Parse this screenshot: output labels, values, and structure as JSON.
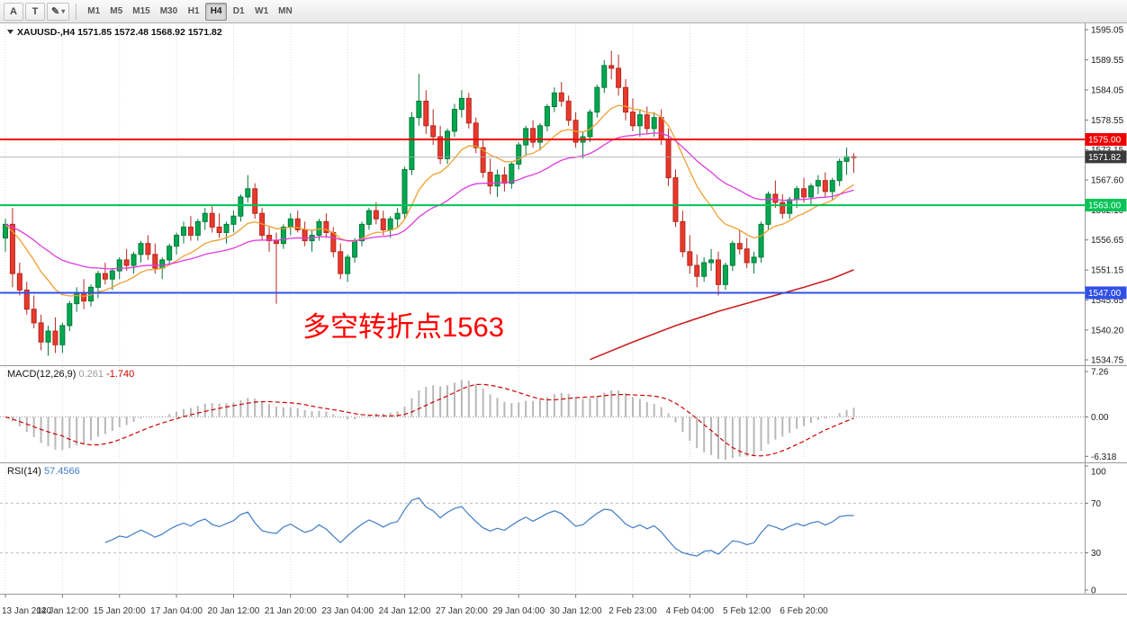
{
  "toolbar": {
    "arrow_tool_label": "A",
    "text_tool_label": "T",
    "draw_tool_icon": "✎",
    "caret_icon": "▾",
    "timeframes": [
      "M1",
      "M5",
      "M15",
      "M30",
      "H1",
      "H4",
      "D1",
      "W1",
      "MN"
    ],
    "active_timeframe": "H4"
  },
  "chart": {
    "header": {
      "symbol": "XAUUSD-,H4",
      "open": "1571.85",
      "high": "1572.48",
      "low": "1568.92",
      "close": "1571.82"
    },
    "annotation": {
      "text": "多空转折点1563",
      "color": "#ff0000"
    },
    "hlines": [
      {
        "price": 1575.0,
        "label": "1575.00",
        "color": "#ee0000",
        "text_color": "#ffffff"
      },
      {
        "price": 1563.0,
        "label": "1563.00",
        "color": "#00c455",
        "text_color": "#ffffff"
      },
      {
        "price": 1547.0,
        "label": "1547.00",
        "color": "#3050e8",
        "text_color": "#ffffff"
      }
    ],
    "bid": {
      "price": 1571.82,
      "label": "1571.82"
    },
    "price_ticks": [
      "1595.05",
      "1589.55",
      "1584.05",
      "1578.55",
      "1573.15",
      "1567.60",
      "1562.10",
      "1556.65",
      "1551.15",
      "1545.65",
      "1540.20",
      "1534.75"
    ]
  },
  "chart_data": {
    "type": "candlestick",
    "symbol": "XAUUSD",
    "timeframe": "H4",
    "title": "XAUUSD-,H4 1571.85 1572.48 1568.92 1571.82",
    "price_range": [
      1534.75,
      1595.05
    ],
    "label_every_n_bars": 8,
    "time_labels": [
      "13 Jan 2020",
      "14 Jan 12:00",
      "15 Jan 20:00",
      "17 Jan 04:00",
      "20 Jan 12:00",
      "21 Jan 20:00",
      "23 Jan 04:00",
      "24 Jan 12:00",
      "27 Jan 20:00",
      "29 Jan 04:00",
      "30 Jan 12:00",
      "2 Feb 23:00",
      "4 Feb 04:00",
      "5 Feb 12:00",
      "6 Feb 20:00"
    ],
    "candles": [
      [
        1557.0,
        1560.5,
        1554.5,
        1559.5
      ],
      [
        1559.5,
        1562.5,
        1548.0,
        1550.5
      ],
      [
        1550.5,
        1552.5,
        1546.5,
        1547.5
      ],
      [
        1547.5,
        1549.0,
        1543.0,
        1544.0
      ],
      [
        1544.0,
        1546.5,
        1540.5,
        1541.5
      ],
      [
        1541.5,
        1543.0,
        1536.5,
        1538.0
      ],
      [
        1538.0,
        1541.0,
        1535.5,
        1540.0
      ],
      [
        1540.0,
        1542.5,
        1536.0,
        1537.5
      ],
      [
        1537.5,
        1541.5,
        1536.0,
        1541.0
      ],
      [
        1541.0,
        1545.5,
        1540.0,
        1545.0
      ],
      [
        1545.0,
        1548.0,
        1543.5,
        1547.0
      ],
      [
        1547.0,
        1549.5,
        1544.0,
        1545.5
      ],
      [
        1545.5,
        1548.5,
        1544.5,
        1548.0
      ],
      [
        1548.0,
        1551.0,
        1546.0,
        1550.5
      ],
      [
        1550.5,
        1552.5,
        1548.5,
        1549.5
      ],
      [
        1549.5,
        1551.5,
        1547.5,
        1551.0
      ],
      [
        1551.0,
        1553.5,
        1549.5,
        1553.0
      ],
      [
        1553.0,
        1555.0,
        1551.0,
        1552.0
      ],
      [
        1552.0,
        1554.5,
        1550.5,
        1554.0
      ],
      [
        1554.0,
        1556.5,
        1552.5,
        1556.0
      ],
      [
        1556.0,
        1557.5,
        1553.0,
        1554.0
      ],
      [
        1554.0,
        1556.0,
        1550.5,
        1551.5
      ],
      [
        1551.5,
        1553.5,
        1549.5,
        1553.0
      ],
      [
        1553.0,
        1556.0,
        1552.0,
        1555.5
      ],
      [
        1555.5,
        1558.0,
        1554.0,
        1557.5
      ],
      [
        1557.5,
        1560.0,
        1556.0,
        1559.0
      ],
      [
        1559.0,
        1561.0,
        1556.5,
        1557.5
      ],
      [
        1557.5,
        1560.5,
        1556.5,
        1560.0
      ],
      [
        1560.0,
        1562.5,
        1558.5,
        1561.5
      ],
      [
        1561.5,
        1562.8,
        1558.0,
        1559.0
      ],
      [
        1559.0,
        1561.5,
        1557.0,
        1558.0
      ],
      [
        1558.0,
        1560.0,
        1556.0,
        1559.5
      ],
      [
        1559.5,
        1562.0,
        1558.0,
        1561.0
      ],
      [
        1561.0,
        1565.0,
        1560.0,
        1564.5
      ],
      [
        1564.5,
        1568.5,
        1563.5,
        1566.0
      ],
      [
        1566.0,
        1567.0,
        1560.5,
        1561.5
      ],
      [
        1561.5,
        1562.5,
        1556.5,
        1557.5
      ],
      [
        1557.5,
        1559.0,
        1554.5,
        1556.5
      ],
      [
        1556.5,
        1558.0,
        1545.0,
        1556.0
      ],
      [
        1556.0,
        1559.5,
        1555.0,
        1559.0
      ],
      [
        1559.0,
        1561.5,
        1557.5,
        1560.5
      ],
      [
        1560.5,
        1562.0,
        1558.0,
        1558.5
      ],
      [
        1558.5,
        1560.0,
        1555.5,
        1556.5
      ],
      [
        1556.5,
        1558.5,
        1554.5,
        1557.5
      ],
      [
        1557.5,
        1560.5,
        1556.5,
        1560.0
      ],
      [
        1560.0,
        1561.5,
        1557.0,
        1558.0
      ],
      [
        1558.0,
        1559.0,
        1553.5,
        1554.5
      ],
      [
        1554.5,
        1556.0,
        1549.5,
        1550.5
      ],
      [
        1550.5,
        1554.0,
        1549.0,
        1553.5
      ],
      [
        1553.5,
        1557.0,
        1552.5,
        1556.5
      ],
      [
        1556.5,
        1560.0,
        1555.5,
        1559.5
      ],
      [
        1559.5,
        1562.5,
        1558.5,
        1562.0
      ],
      [
        1562.0,
        1563.5,
        1559.5,
        1560.5
      ],
      [
        1560.5,
        1562.0,
        1557.5,
        1558.5
      ],
      [
        1558.5,
        1561.0,
        1557.0,
        1560.5
      ],
      [
        1560.5,
        1562.5,
        1559.0,
        1561.5
      ],
      [
        1561.5,
        1570.0,
        1560.5,
        1569.5
      ],
      [
        1569.5,
        1580.0,
        1568.5,
        1579.0
      ],
      [
        1579.0,
        1587.0,
        1577.5,
        1582.0
      ],
      [
        1582.0,
        1584.0,
        1576.0,
        1577.5
      ],
      [
        1577.5,
        1580.5,
        1574.0,
        1575.5
      ],
      [
        1575.5,
        1577.5,
        1570.5,
        1571.5
      ],
      [
        1571.5,
        1577.0,
        1570.5,
        1576.5
      ],
      [
        1576.5,
        1581.5,
        1575.5,
        1580.5
      ],
      [
        1580.5,
        1584.0,
        1579.0,
        1582.5
      ],
      [
        1582.5,
        1583.5,
        1577.0,
        1578.0
      ],
      [
        1578.0,
        1579.0,
        1572.5,
        1573.5
      ],
      [
        1573.5,
        1575.0,
        1568.0,
        1569.0
      ],
      [
        1569.0,
        1571.5,
        1565.0,
        1566.5
      ],
      [
        1566.5,
        1569.5,
        1564.5,
        1568.5
      ],
      [
        1568.5,
        1570.0,
        1565.5,
        1567.0
      ],
      [
        1567.0,
        1571.0,
        1566.0,
        1570.5
      ],
      [
        1570.5,
        1574.5,
        1569.5,
        1574.0
      ],
      [
        1574.0,
        1577.5,
        1572.0,
        1577.0
      ],
      [
        1577.0,
        1578.5,
        1573.5,
        1574.5
      ],
      [
        1574.5,
        1578.0,
        1573.0,
        1577.5
      ],
      [
        1577.5,
        1581.5,
        1576.5,
        1581.0
      ],
      [
        1581.0,
        1584.5,
        1580.0,
        1583.5
      ],
      [
        1583.5,
        1585.5,
        1581.0,
        1582.0
      ],
      [
        1582.0,
        1583.0,
        1577.5,
        1578.5
      ],
      [
        1578.5,
        1580.0,
        1573.5,
        1574.5
      ],
      [
        1574.5,
        1576.5,
        1571.5,
        1575.5
      ],
      [
        1575.5,
        1580.5,
        1574.5,
        1580.0
      ],
      [
        1580.0,
        1585.0,
        1579.0,
        1584.5
      ],
      [
        1584.5,
        1589.5,
        1583.5,
        1588.5
      ],
      [
        1588.5,
        1591.2,
        1586.0,
        1588.0
      ],
      [
        1588.0,
        1590.5,
        1583.0,
        1584.5
      ],
      [
        1584.5,
        1586.0,
        1578.5,
        1580.0
      ],
      [
        1580.0,
        1582.5,
        1576.5,
        1577.5
      ],
      [
        1577.5,
        1580.5,
        1575.5,
        1579.5
      ],
      [
        1579.5,
        1581.0,
        1576.0,
        1577.0
      ],
      [
        1577.0,
        1580.0,
        1575.5,
        1579.0
      ],
      [
        1579.0,
        1580.5,
        1574.0,
        1575.0
      ],
      [
        1575.0,
        1577.0,
        1566.5,
        1568.0
      ],
      [
        1568.0,
        1569.5,
        1559.0,
        1560.0
      ],
      [
        1560.0,
        1562.0,
        1553.5,
        1554.5
      ],
      [
        1554.5,
        1557.5,
        1550.5,
        1552.0
      ],
      [
        1552.0,
        1554.0,
        1548.0,
        1550.0
      ],
      [
        1550.0,
        1553.5,
        1549.0,
        1552.5
      ],
      [
        1552.5,
        1555.0,
        1551.0,
        1553.0
      ],
      [
        1553.0,
        1554.5,
        1546.5,
        1548.5
      ],
      [
        1548.5,
        1552.5,
        1547.5,
        1552.0
      ],
      [
        1552.0,
        1556.5,
        1551.0,
        1556.0
      ],
      [
        1556.0,
        1558.5,
        1554.0,
        1555.0
      ],
      [
        1555.0,
        1557.0,
        1551.5,
        1552.5
      ],
      [
        1552.5,
        1554.5,
        1550.5,
        1553.5
      ],
      [
        1553.5,
        1560.0,
        1552.5,
        1559.5
      ],
      [
        1559.5,
        1565.5,
        1558.5,
        1565.0
      ],
      [
        1565.0,
        1567.5,
        1562.5,
        1563.5
      ],
      [
        1563.5,
        1565.0,
        1560.5,
        1561.5
      ],
      [
        1561.5,
        1564.5,
        1560.5,
        1564.0
      ],
      [
        1564.0,
        1566.5,
        1562.5,
        1566.0
      ],
      [
        1566.0,
        1568.0,
        1563.5,
        1564.5
      ],
      [
        1564.5,
        1567.0,
        1563.0,
        1566.5
      ],
      [
        1566.5,
        1568.5,
        1565.0,
        1567.5
      ],
      [
        1567.5,
        1569.0,
        1564.5,
        1565.5
      ],
      [
        1565.5,
        1568.0,
        1564.0,
        1567.5
      ],
      [
        1567.5,
        1571.5,
        1566.5,
        1571.0
      ],
      [
        1571.0,
        1573.5,
        1568.5,
        1571.85
      ],
      [
        1571.85,
        1572.48,
        1568.92,
        1571.82
      ]
    ],
    "ma_fast_period": 13,
    "ma_slow_period": 34,
    "trend_points": [
      [
        82,
        1534.8
      ],
      [
        88,
        1538.0
      ],
      [
        94,
        1541.0
      ],
      [
        100,
        1543.6
      ],
      [
        106,
        1545.8
      ],
      [
        112,
        1548.0
      ],
      [
        116,
        1549.6
      ],
      [
        119,
        1551.2
      ]
    ],
    "macd": {
      "label": "MACD(12,26,9)",
      "values_text": [
        "0.261",
        "-1.740"
      ],
      "axis_ticks": [
        "7.26",
        "0.00",
        "-6.318"
      ]
    },
    "rsi": {
      "label": "RSI(14)",
      "value_text": "57.4566",
      "levels": [
        70,
        30
      ],
      "axis_ticks": [
        "100",
        "70",
        "30",
        "0"
      ]
    }
  },
  "colors": {
    "up": "#00a94f",
    "up_border": "#00793a",
    "down": "#e8392c",
    "down_border": "#b5281e",
    "ma_fast": "#f0a030",
    "ma_slow": "#df3bdf",
    "trend": "#cc1f1f",
    "macd_hist": "#b8b8b8",
    "macd_signal": "#cc0000",
    "rsi": "#3f7cc4",
    "grid": "#dadada",
    "panel_border": "#9a9a9a",
    "axis_text": "#1a1a1a",
    "bid_line": "#a8a8a8",
    "bid_badge": "#3a3a3a"
  }
}
